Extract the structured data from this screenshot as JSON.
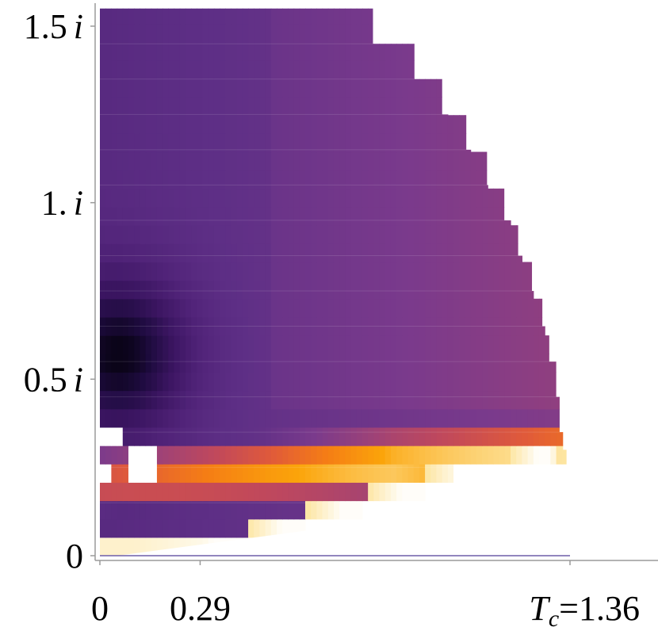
{
  "chart_data": {
    "type": "heatmap",
    "title": "",
    "xlabel": "",
    "ylabel": "",
    "xlim": [
      0,
      1.36
    ],
    "ylim": [
      0,
      1.55
    ],
    "x_ticks": [
      {
        "value": 0,
        "label": "0"
      },
      {
        "value": 0.29,
        "label": "0.29"
      },
      {
        "value": 1.36,
        "label_italic": "T",
        "label_sub": "c",
        "label": "=1.36"
      }
    ],
    "y_ticks": [
      {
        "value": 0,
        "label": "0",
        "italic_i": false
      },
      {
        "value": 0.5,
        "label": "0.5",
        "italic_i": true
      },
      {
        "value": 1.0,
        "label": "1.",
        "italic_i": true
      },
      {
        "value": 1.5,
        "label": "1.5",
        "italic_i": true
      }
    ],
    "imag_unit": "i",
    "colormap": [
      "#000004",
      "#1e0b3f",
      "#3b1561",
      "#4f2277",
      "#5e2f86",
      "#7a3a8c",
      "#9d4278",
      "#c0485c",
      "#e05a3a",
      "#f57d15",
      "#fba40a",
      "#fde5a0",
      "#ffffff"
    ],
    "domain_boundary": [
      {
        "y": 1.55,
        "x_max": 0.79
      },
      {
        "y": 1.45,
        "x_max": 0.91
      },
      {
        "y": 1.35,
        "x_max": 0.99
      },
      {
        "y": 1.25,
        "x_max": 1.06
      },
      {
        "y": 1.15,
        "x_max": 1.12
      },
      {
        "y": 1.05,
        "x_max": 1.17
      },
      {
        "y": 0.95,
        "x_max": 1.21
      },
      {
        "y": 0.85,
        "x_max": 1.25
      },
      {
        "y": 0.75,
        "x_max": 1.28
      },
      {
        "y": 0.65,
        "x_max": 1.3
      },
      {
        "y": 0.55,
        "x_max": 1.32
      },
      {
        "y": 0.45,
        "x_max": 1.33
      },
      {
        "y": 0.35,
        "x_max": 1.34
      },
      {
        "y": 0.3,
        "x_max": 1.35
      },
      {
        "y": 0.25,
        "x_max": 1.36
      },
      {
        "y": 0.18,
        "x_max": 1.36
      }
    ],
    "lower_edge": [
      {
        "x": 0.0,
        "y": 0.01
      },
      {
        "x": 0.1,
        "y": 0.01
      },
      {
        "x": 0.3,
        "y": 0.02
      },
      {
        "x": 0.4,
        "y": 0.04
      },
      {
        "x": 0.5,
        "y": 0.07
      },
      {
        "x": 0.6,
        "y": 0.1
      },
      {
        "x": 0.7,
        "y": 0.13
      },
      {
        "x": 0.8,
        "y": 0.16
      },
      {
        "x": 0.9,
        "y": 0.19
      },
      {
        "x": 1.0,
        "y": 0.22
      },
      {
        "x": 1.2,
        "y": 0.26
      },
      {
        "x": 1.3,
        "y": 0.3
      },
      {
        "x": 1.36,
        "y": 0.18
      }
    ],
    "grid": false
  }
}
